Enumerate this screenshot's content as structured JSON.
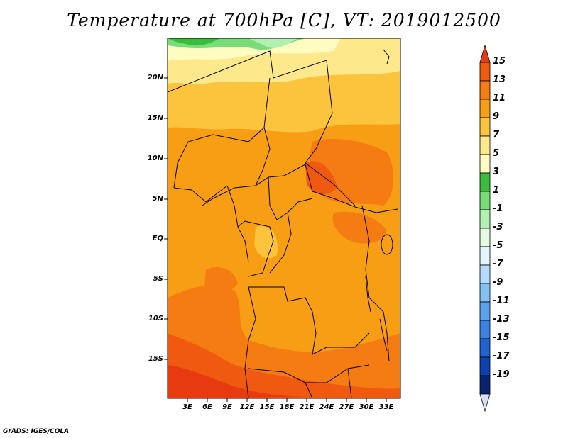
{
  "title": "Temperature at 700hPa [C], VT: 2019012500",
  "credit": "GrADS: IGES/COLA",
  "map": {
    "lat_labels": [
      "20N",
      "15N",
      "10N",
      "5N",
      "EQ",
      "5S",
      "10S",
      "15S"
    ],
    "lon_labels": [
      "3E",
      "6E",
      "9E",
      "12E",
      "15E",
      "18E",
      "21E",
      "24E",
      "27E",
      "30E",
      "33E"
    ]
  },
  "colorbar": {
    "labels": [
      "15",
      "13",
      "11",
      "9",
      "7",
      "5",
      "3",
      "1",
      "-1",
      "-3",
      "-5",
      "-7",
      "-9",
      "-11",
      "-13",
      "-15",
      "-17",
      "-19"
    ],
    "colors": [
      "#e83a10",
      "#f05a10",
      "#f47c12",
      "#f89e14",
      "#fcc43c",
      "#fde88c",
      "#fefcc0",
      "#3cbc3c",
      "#78dc78",
      "#b0f0b0",
      "#e4fae4",
      "#e4f4fc",
      "#b4dcfc",
      "#84c0f4",
      "#5aa0ec",
      "#3c82e4",
      "#2062d2",
      "#0e40b0",
      "#082470",
      "#dcdcfc"
    ]
  }
}
